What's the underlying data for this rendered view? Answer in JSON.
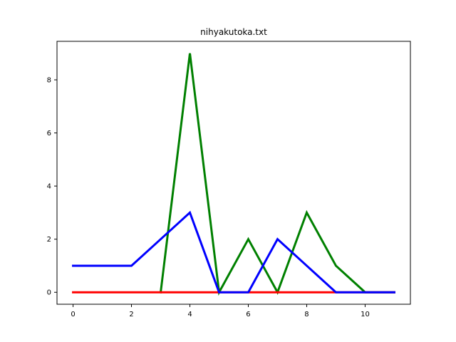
{
  "chart_data": {
    "type": "line",
    "title": "nihyakutoka.txt",
    "xlabel": "",
    "ylabel": "",
    "xlim": [
      -0.55,
      11.55
    ],
    "ylim": [
      -0.45,
      9.45
    ],
    "xticks": [
      0,
      2,
      4,
      6,
      8,
      10
    ],
    "yticks": [
      0,
      2,
      4,
      6,
      8
    ],
    "grid": false,
    "series": [
      {
        "color": "#008000",
        "x": [
          3,
          4,
          5,
          6,
          7,
          8,
          9,
          10,
          11
        ],
        "y": [
          0,
          9,
          0,
          2,
          0,
          3,
          1,
          0,
          0
        ]
      },
      {
        "color": "#ff0000",
        "x": [
          0,
          1,
          2,
          3,
          4,
          5,
          6,
          7,
          8,
          9,
          10,
          11
        ],
        "y": [
          0,
          0,
          0,
          0,
          0,
          0,
          0,
          0,
          0,
          0,
          0,
          0
        ]
      },
      {
        "color": "#0000ff",
        "x": [
          0,
          1,
          2,
          3,
          4,
          5,
          6,
          7,
          8,
          9,
          10,
          11
        ],
        "y": [
          1,
          1,
          1,
          2,
          3,
          0,
          0,
          2,
          1,
          0,
          0,
          0
        ]
      }
    ]
  }
}
